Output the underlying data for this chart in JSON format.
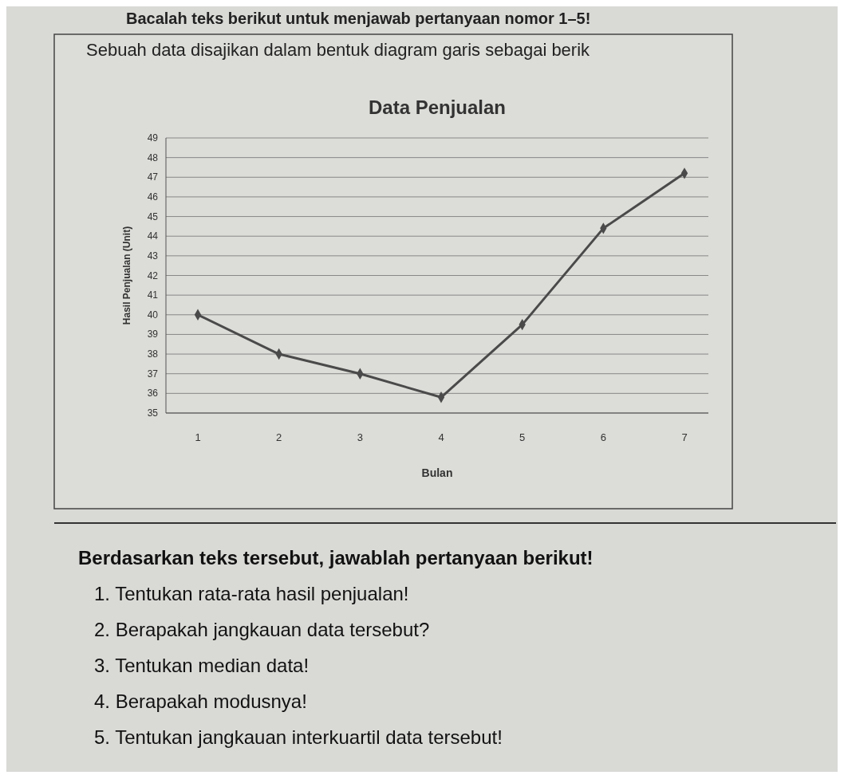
{
  "chart_data": {
    "type": "line",
    "title": "Data Penjualan",
    "xlabel": "Bulan",
    "ylabel": "Hasil Penjualan (Unit)",
    "categories": [
      "1",
      "2",
      "3",
      "4",
      "5",
      "6",
      "7"
    ],
    "series": [
      {
        "color": "#4a4a4a",
        "values": [
          40,
          38,
          37,
          35.8,
          39.5,
          44.4,
          47.2
        ]
      }
    ],
    "ylim": [
      35,
      49
    ],
    "yticks": [
      35,
      36,
      37,
      38,
      39,
      40,
      41,
      42,
      43,
      44,
      45,
      46,
      47,
      48,
      49
    ],
    "grid": "y",
    "marker": "diamond",
    "line_style": "solid",
    "annotations": [
      "Bacalah teks berikut untuk menjawab pertanyaan nomor 1–5!",
      "Sebuah data disajikan dalam bentuk diagram garis sebagai berik",
      "Berdasarkan teks tersebut, jawablah pertanyaan berikut!",
      "1. Tentukan rata-rata hasil penjualan!",
      "2. Berapakah jangkauan data tersebut?",
      "3. Tentukan median data!",
      "4. Berapakah modusnya!",
      "5. Tentukan jangkauan interkuartil data tersebut!"
    ]
  }
}
